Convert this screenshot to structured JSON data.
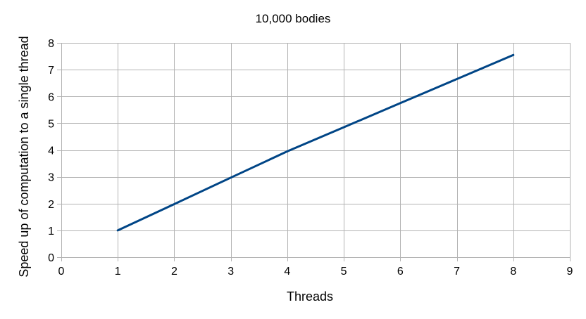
{
  "chart_data": {
    "type": "line",
    "title": "10,000 bodies",
    "xlabel": "Threads",
    "ylabel": "Speed up of computation to a single thread",
    "xlim": [
      0,
      9
    ],
    "ylim": [
      0,
      8
    ],
    "x_ticks": [
      "0",
      "1",
      "2",
      "3",
      "4",
      "5",
      "6",
      "7",
      "8",
      "9"
    ],
    "y_ticks": [
      "0",
      "1",
      "2",
      "3",
      "4",
      "5",
      "6",
      "7",
      "8"
    ],
    "grid": true,
    "legend": "none",
    "series": [
      {
        "color": "#004586",
        "x": [
          1,
          2,
          3,
          4,
          5,
          6,
          7,
          8
        ],
        "y": [
          1.0,
          1.98,
          2.97,
          3.95,
          4.85,
          5.75,
          6.65,
          7.55
        ]
      }
    ]
  }
}
